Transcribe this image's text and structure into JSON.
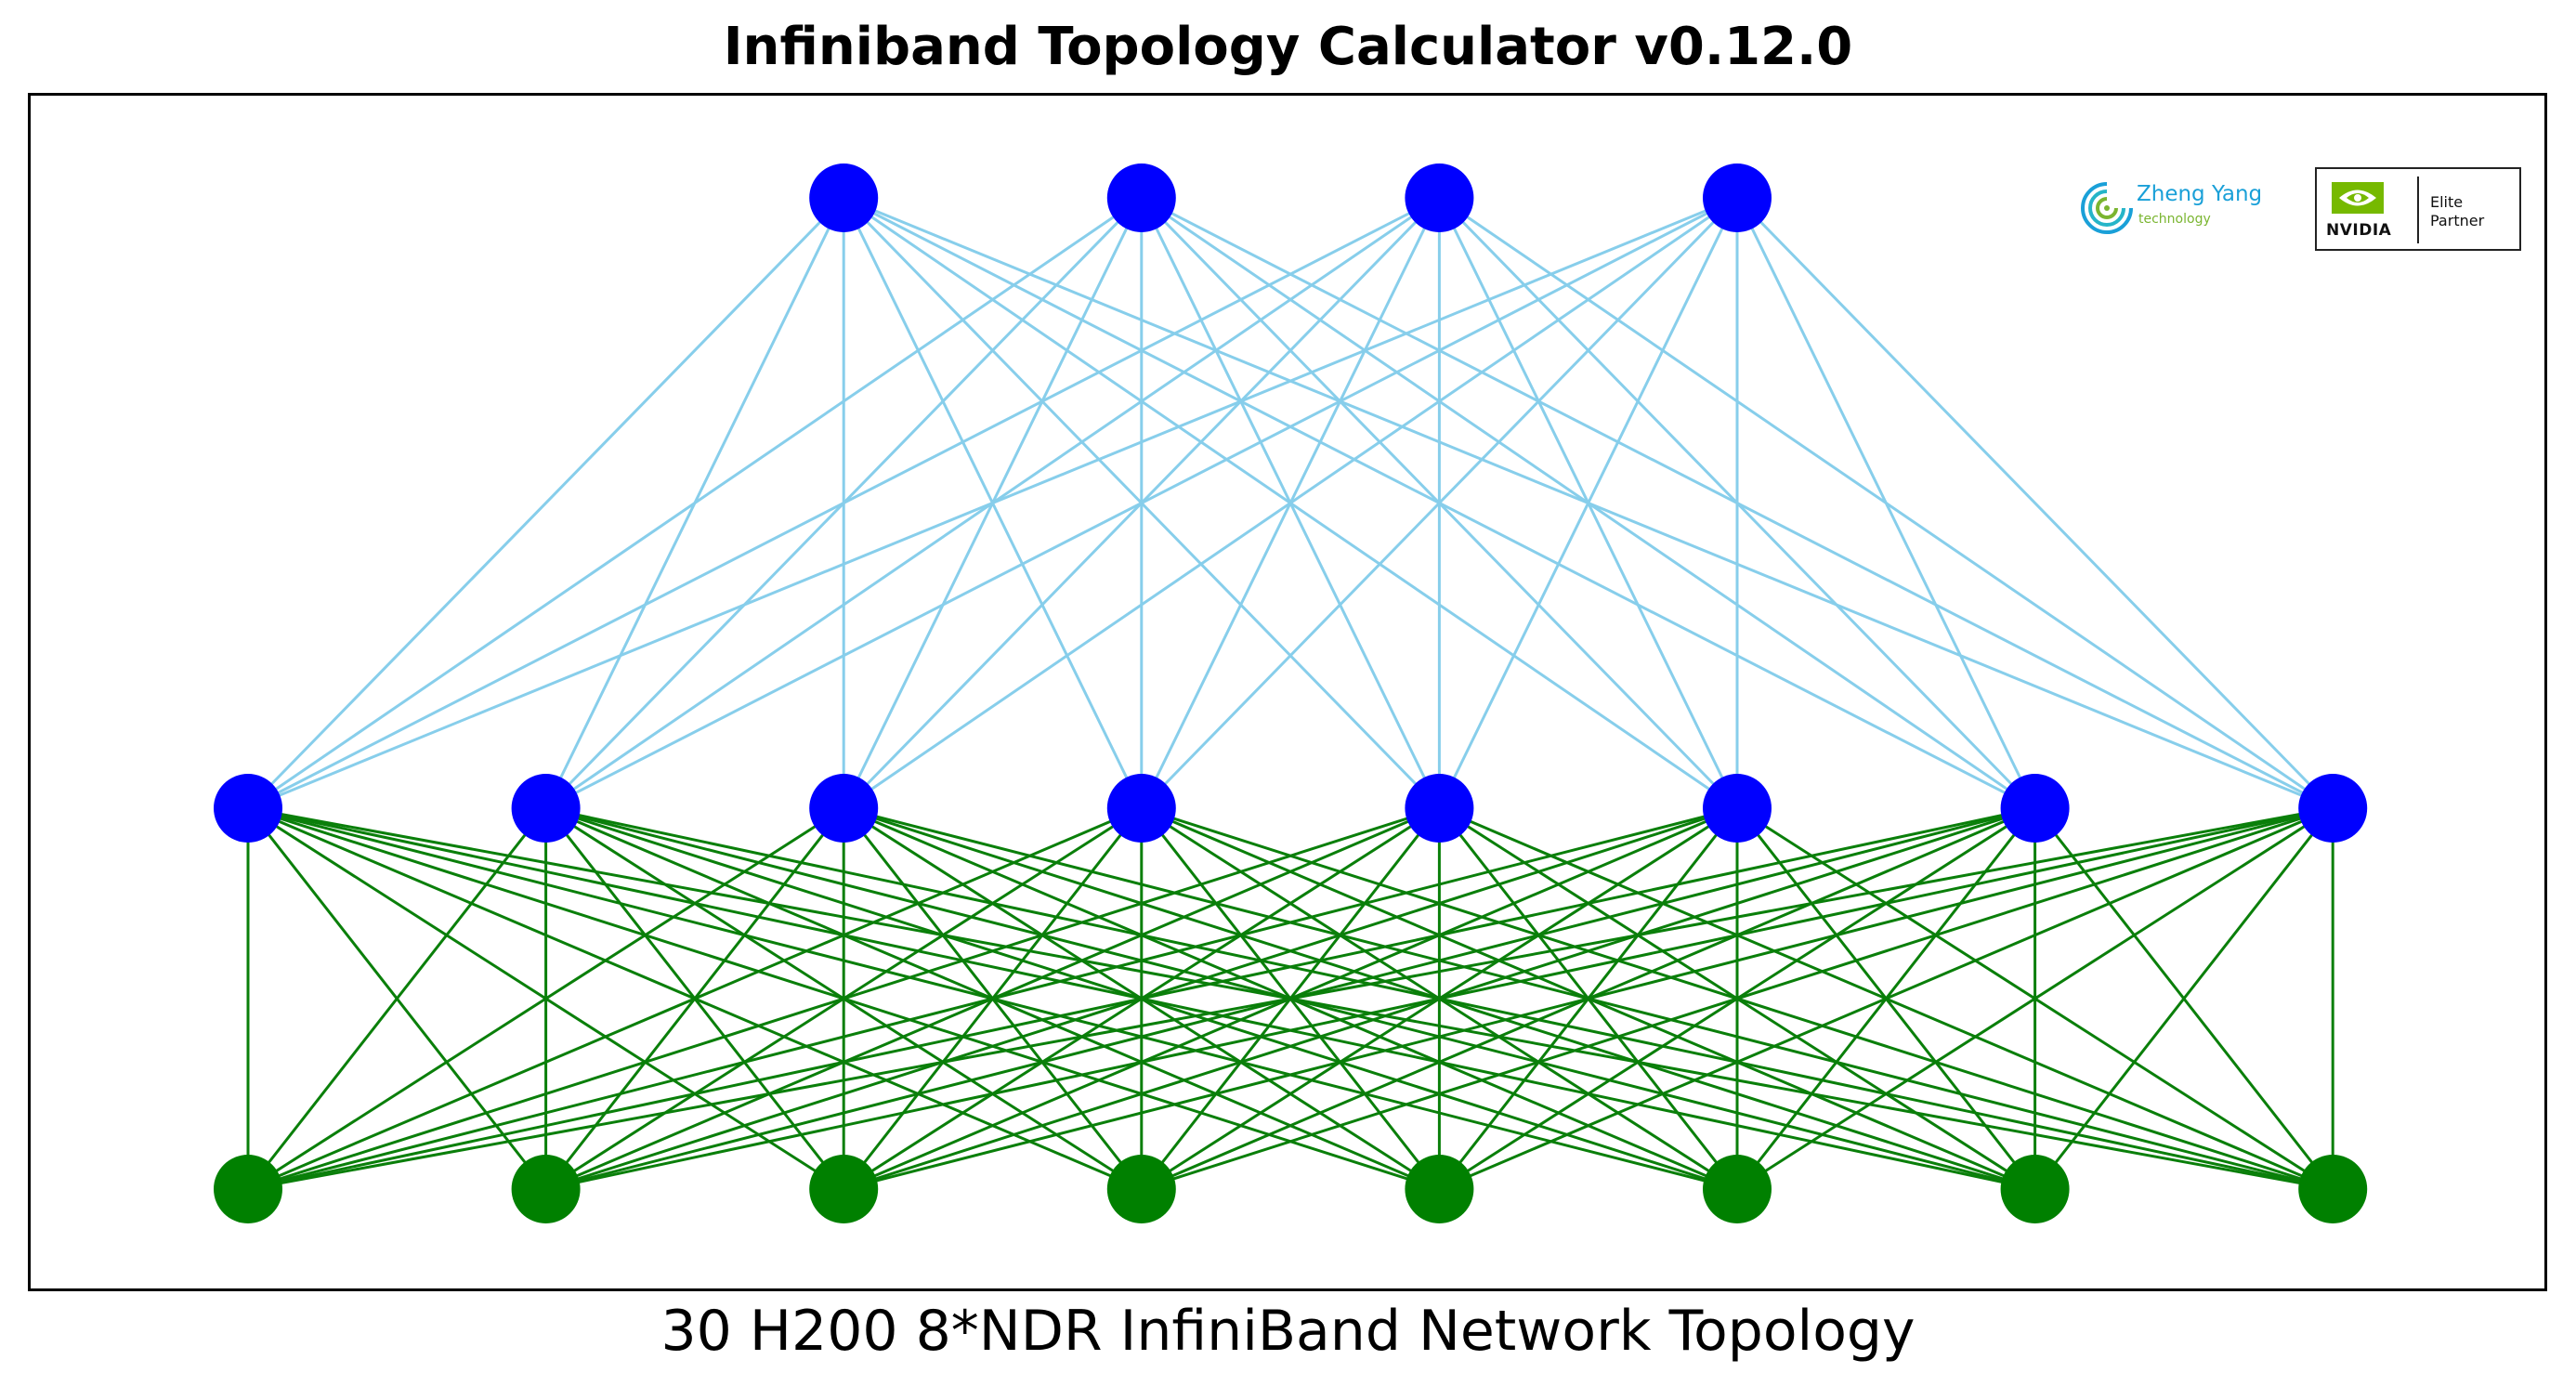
{
  "title": "Infiniband Topology Calculator v0.12.0",
  "caption": "30 H200 8*NDR InfiniBand Network Topology",
  "logos": {
    "zheng_yang": {
      "name": "Zheng Yang",
      "subtitle": "technology"
    },
    "nvidia": {
      "wordmark": "NVIDIA",
      "elite": "Elite",
      "partner": "Partner"
    }
  },
  "colors": {
    "switch_node": "#0000ff",
    "server_node": "#008000",
    "spine_link": "#87ceeb",
    "leaf_link": "#0a7f0a",
    "nvidia_green": "#76b900"
  },
  "topology": {
    "spine_count": 4,
    "leaf_count": 8,
    "server_count": 8,
    "spine_to_leaf": "full-mesh",
    "leaf_to_server": "full-mesh"
  }
}
